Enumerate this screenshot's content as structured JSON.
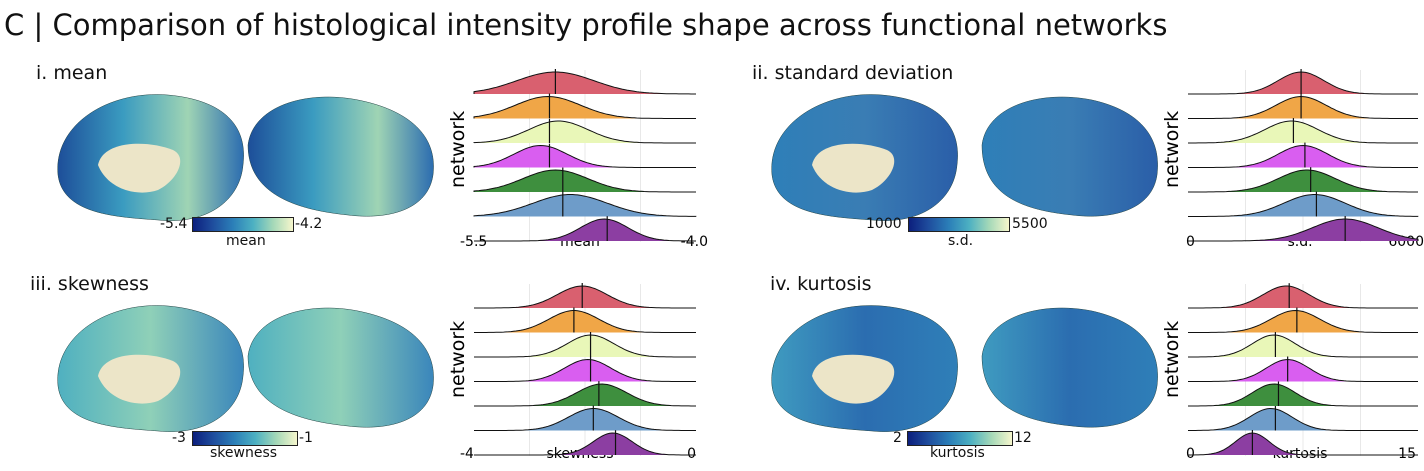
{
  "title": "C |  Comparison of histological intensity profile shape across functional networks",
  "colors": {
    "network_fills": [
      "#d9606f",
      "#f0a647",
      "#e9f7b8",
      "#d95ef0",
      "#3e8f3e",
      "#6e9cc9",
      "#8c3ea2"
    ],
    "colormap": [
      "#0c1f7d",
      "#2b7fb8",
      "#4cb0c2",
      "#a4d8b8",
      "#f6f6cc"
    ]
  },
  "panels": [
    {
      "label": "i. mean",
      "colorbar": {
        "min": "-5.4",
        "max": "-4.2",
        "label": "mean"
      },
      "ridge": {
        "ylabel": "network",
        "xlabel": "mean",
        "xmin_label": "-5.5",
        "xmax_label": "-4.0"
      }
    },
    {
      "label": "ii. standard deviation",
      "colorbar": {
        "min": "1000",
        "max": "5500",
        "label": "s.d."
      },
      "ridge": {
        "ylabel": "network",
        "xlabel": "s.d.",
        "xmin_label": "0",
        "xmax_label": "6000"
      }
    },
    {
      "label": "iii. skewness",
      "colorbar": {
        "min": "-3",
        "max": "-1",
        "label": "skewness"
      },
      "ridge": {
        "ylabel": "network",
        "xlabel": "skewness",
        "xmin_label": "-4",
        "xmax_label": "0"
      }
    },
    {
      "label": "iv. kurtosis",
      "colorbar": {
        "min": "2",
        "max": "12",
        "label": "kurtosis"
      },
      "ridge": {
        "ylabel": "network",
        "xlabel": "kurtosis",
        "xmin_label": "0",
        "xmax_label": "15"
      }
    }
  ],
  "chart_data": [
    {
      "type": "area",
      "xlabel": "mean",
      "ylabel": "network",
      "xlim": [
        -5.5,
        -4.0
      ],
      "series": [
        {
          "mode": -4.95,
          "spread": 0.26,
          "median": -4.95
        },
        {
          "mode": -5.0,
          "spread": 0.22,
          "median": -4.99
        },
        {
          "mode": -4.93,
          "spread": 0.2,
          "median": -4.99
        },
        {
          "mode": -5.05,
          "spread": 0.18,
          "median": -4.99
        },
        {
          "mode": -4.95,
          "spread": 0.22,
          "median": -4.9
        },
        {
          "mode": -4.85,
          "spread": 0.25,
          "median": -4.9
        },
        {
          "mode": -4.62,
          "spread": 0.16,
          "median": -4.6
        }
      ]
    },
    {
      "type": "area",
      "xlabel": "s.d.",
      "ylabel": "network",
      "xlim": [
        0,
        6000
      ],
      "series": [
        {
          "mode": 2950,
          "spread": 600,
          "median": 2950
        },
        {
          "mode": 2950,
          "spread": 650,
          "median": 2950
        },
        {
          "mode": 2700,
          "spread": 700,
          "median": 2750
        },
        {
          "mode": 3000,
          "spread": 650,
          "median": 3050
        },
        {
          "mode": 3100,
          "spread": 750,
          "median": 3200
        },
        {
          "mode": 3300,
          "spread": 800,
          "median": 3350
        },
        {
          "mode": 4100,
          "spread": 850,
          "median": 4100
        }
      ]
    },
    {
      "type": "area",
      "xlabel": "skewness",
      "ylabel": "network",
      "xlim": [
        -4,
        0
      ],
      "series": [
        {
          "mode": -2.05,
          "spread": 0.45,
          "median": -2.05
        },
        {
          "mode": -2.2,
          "spread": 0.45,
          "median": -2.2
        },
        {
          "mode": -1.9,
          "spread": 0.42,
          "median": -1.9
        },
        {
          "mode": -1.95,
          "spread": 0.42,
          "median": -1.9
        },
        {
          "mode": -1.7,
          "spread": 0.45,
          "median": -1.75
        },
        {
          "mode": -1.85,
          "spread": 0.45,
          "median": -1.85
        },
        {
          "mode": -1.5,
          "spread": 0.35,
          "median": -1.45
        }
      ]
    },
    {
      "type": "area",
      "xlabel": "kurtosis",
      "ylabel": "network",
      "xlim": [
        0,
        15
      ],
      "series": [
        {
          "mode": 6.4,
          "spread": 1.5,
          "median": 6.6
        },
        {
          "mode": 7.0,
          "spread": 1.6,
          "median": 7.1
        },
        {
          "mode": 5.6,
          "spread": 1.4,
          "median": 5.7
        },
        {
          "mode": 6.5,
          "spread": 1.4,
          "median": 6.5
        },
        {
          "mode": 5.6,
          "spread": 1.4,
          "median": 5.9
        },
        {
          "mode": 5.4,
          "spread": 1.4,
          "median": 5.7
        },
        {
          "mode": 4.2,
          "spread": 1.1,
          "median": 4.2
        }
      ]
    }
  ]
}
